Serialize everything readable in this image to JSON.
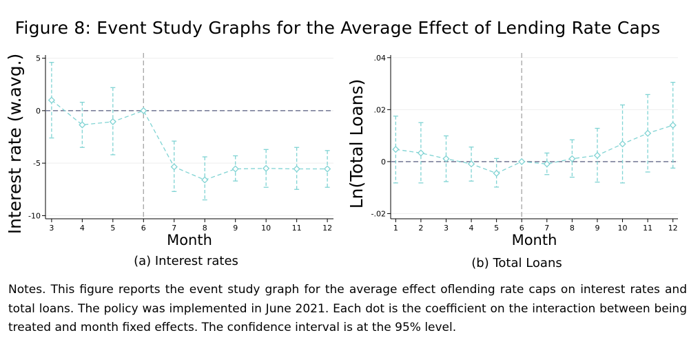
{
  "figure_title": "Figure 8:  Event Study Graphs for the Average Effect of Lending Rate Caps",
  "notes": "Notes. This figure reports the event study graph for the average effect oflending rate caps on interest rates and total loans. The policy was implemented in June 2021. Each dot is the coefficient on the interaction between being treated and month fixed effects. The confidence interval is at the 95% level.",
  "colors": {
    "series": "#7fd3d3",
    "zero_line": "#7a7f9a",
    "event_line": "#aaaaaa",
    "axis": "#000000",
    "grid": "#eeeeee"
  },
  "chart_data": [
    {
      "type": "line",
      "caption": "(a) Interest rates",
      "xlabel": "Month",
      "ylabel": "Interest rate (w.avg.)",
      "xlim": [
        2.8,
        12.2
      ],
      "ylim": [
        -10.3,
        5.3
      ],
      "x_ticks": [
        3,
        4,
        5,
        6,
        7,
        8,
        9,
        10,
        11,
        12
      ],
      "x_tick_labels": [
        "3",
        "4",
        "5",
        "6",
        "7",
        "8",
        "9",
        "10",
        "11",
        "12"
      ],
      "y_ticks": [
        5,
        0,
        -5,
        -10
      ],
      "y_tick_labels": [
        "5",
        "0",
        "-5",
        "-10"
      ],
      "event_x": 6,
      "reference_y": 0,
      "series": [
        {
          "name": "Coefficient",
          "x": [
            3,
            4,
            5,
            6,
            7,
            8,
            9,
            10,
            11,
            12
          ],
          "values": [
            1.0,
            -1.35,
            -1.05,
            0.0,
            -5.35,
            -6.6,
            -5.55,
            -5.5,
            -5.55,
            -5.55
          ],
          "ci_low": [
            -2.6,
            -3.5,
            -4.2,
            0.0,
            -7.7,
            -8.5,
            -6.7,
            -7.3,
            -7.5,
            -7.3
          ],
          "ci_high": [
            4.6,
            0.8,
            2.2,
            0.0,
            -2.9,
            -4.4,
            -4.3,
            -3.7,
            -3.5,
            -3.8
          ]
        }
      ]
    },
    {
      "type": "line",
      "caption": "(b) Total Loans",
      "xlabel": "Month",
      "ylabel": "Ln(Total Loans)",
      "xlim": [
        0.8,
        12.2
      ],
      "ylim": [
        -0.022,
        0.041
      ],
      "x_ticks": [
        1,
        2,
        3,
        4,
        5,
        6,
        7,
        8,
        9,
        10,
        11,
        12
      ],
      "x_tick_labels": [
        "1",
        "2",
        "3",
        "4",
        "5",
        "6",
        "7",
        "8",
        "9",
        "10",
        "11",
        "12"
      ],
      "y_ticks": [
        0.04,
        0.02,
        0,
        -0.02
      ],
      "y_tick_labels": [
        ".04",
        ".02",
        "0",
        "-.02"
      ],
      "event_x": 6,
      "reference_y": 0,
      "series": [
        {
          "name": "Coefficient",
          "x": [
            1,
            2,
            3,
            4,
            5,
            6,
            7,
            8,
            9,
            10,
            11,
            12
          ],
          "values": [
            0.0047,
            0.0033,
            0.0011,
            -0.0009,
            -0.0045,
            0.0,
            -0.0009,
            0.0011,
            0.0024,
            0.0068,
            0.0109,
            0.014
          ],
          "ci_low": [
            -0.0082,
            -0.0082,
            -0.0077,
            -0.0075,
            -0.0098,
            0.0,
            -0.005,
            -0.006,
            -0.0079,
            -0.0082,
            -0.004,
            -0.0025
          ],
          "ci_high": [
            0.0175,
            0.015,
            0.0099,
            0.0056,
            0.0012,
            0.0,
            0.0033,
            0.0084,
            0.0128,
            0.0218,
            0.0258,
            0.0305
          ]
        }
      ]
    }
  ]
}
